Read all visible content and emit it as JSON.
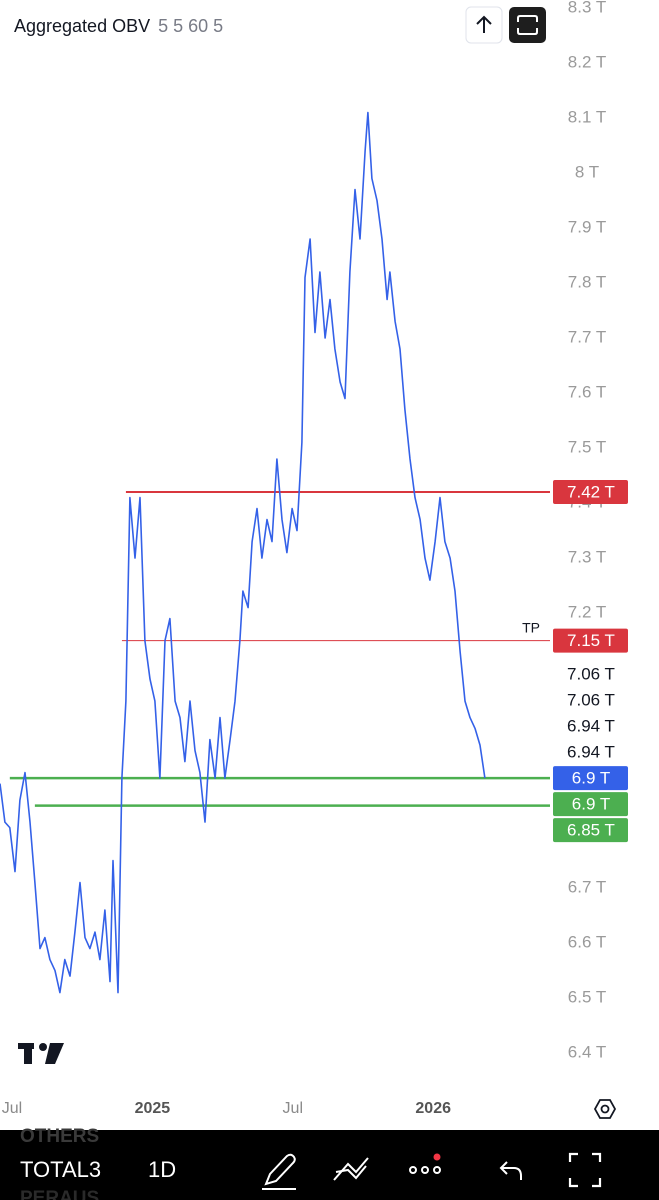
{
  "header": {
    "title": "Aggregated OBV",
    "params": "5 5 60 5"
  },
  "chart_data": {
    "type": "line",
    "color": "#3461e8",
    "x": [
      -0.51,
      -0.3,
      -0.09,
      0.13,
      0.34,
      0.56,
      0.77,
      0.98,
      1.2,
      1.41,
      1.62,
      1.84,
      2.05,
      2.26,
      2.48,
      2.69,
      2.91,
      3.12,
      3.33,
      3.55,
      3.76,
      3.97,
      4.19,
      4.32,
      4.53,
      4.7,
      4.87,
      5.04,
      5.26,
      5.47,
      5.68,
      5.9,
      6.11,
      6.32,
      6.54,
      6.75,
      6.97,
      7.18,
      7.39,
      7.61,
      7.82,
      8.03,
      8.25,
      8.46,
      8.68,
      8.89,
      9.1,
      9.32,
      9.53,
      9.74,
      9.87,
      10.09,
      10.26,
      10.47,
      10.68,
      10.9,
      11.11,
      11.32,
      11.54,
      11.75,
      11.97,
      12.18,
      12.39,
      12.52,
      12.74,
      12.95,
      13.16,
      13.38,
      13.59,
      13.8,
      14.02,
      14.23,
      14.44,
      14.66,
      14.87,
      15.09,
      15.21,
      15.38,
      15.6,
      15.81,
      16.03,
      16.15,
      16.37,
      16.58,
      16.79,
      17.01,
      17.22,
      17.44,
      17.65,
      17.86,
      18.08,
      18.29,
      18.5,
      18.72,
      18.93,
      19.15,
      19.36,
      19.57,
      19.79,
      20.0,
      20.21
    ],
    "values": [
      6.89,
      6.82,
      6.81,
      6.73,
      6.86,
      6.91,
      6.82,
      6.71,
      6.59,
      6.61,
      6.57,
      6.55,
      6.51,
      6.57,
      6.54,
      6.62,
      6.71,
      6.61,
      6.59,
      6.62,
      6.57,
      6.66,
      6.53,
      6.75,
      6.51,
      6.9,
      7.04,
      7.41,
      7.3,
      7.41,
      7.15,
      7.08,
      7.04,
      6.9,
      7.15,
      7.19,
      7.04,
      7.01,
      6.93,
      7.04,
      6.95,
      6.91,
      6.82,
      6.97,
      6.9,
      7.01,
      6.9,
      6.97,
      7.04,
      7.15,
      7.24,
      7.21,
      7.33,
      7.39,
      7.3,
      7.37,
      7.33,
      7.48,
      7.37,
      7.31,
      7.39,
      7.35,
      7.51,
      7.81,
      7.88,
      7.71,
      7.82,
      7.7,
      7.77,
      7.68,
      7.62,
      7.59,
      7.82,
      7.97,
      7.88,
      8.04,
      8.11,
      7.99,
      7.95,
      7.88,
      7.77,
      7.82,
      7.73,
      7.68,
      7.57,
      7.48,
      7.41,
      7.37,
      7.3,
      7.26,
      7.33,
      7.41,
      7.33,
      7.3,
      7.24,
      7.13,
      7.04,
      7.01,
      6.99,
      6.96,
      6.9
    ],
    "xlim": [
      -0.51,
      22.99
    ],
    "xticks": [
      {
        "value": 0,
        "label": "Jul"
      },
      {
        "value": 6,
        "label": "2025"
      },
      {
        "value": 12,
        "label": "Jul"
      },
      {
        "value": 18,
        "label": "2026"
      }
    ],
    "ylim": [
      6.333,
      8.3145
    ],
    "yticks": [
      {
        "value": 8.3,
        "label": "8.3 T"
      },
      {
        "value": 8.2,
        "label": "8.2 T"
      },
      {
        "value": 8.1,
        "label": "8.1 T"
      },
      {
        "value": 8,
        "label": "8 T"
      },
      {
        "value": 7.9,
        "label": "7.9 T"
      },
      {
        "value": 7.8,
        "label": "7.8 T"
      },
      {
        "value": 7.7,
        "label": "7.7 T"
      },
      {
        "value": 7.6,
        "label": "7.6 T"
      },
      {
        "value": 7.5,
        "label": "7.5 T"
      },
      {
        "value": 7.4,
        "label": "7.4 T"
      },
      {
        "value": 7.3,
        "label": "7.3 T"
      },
      {
        "value": 7.2,
        "label": "7.2 T"
      },
      {
        "value": 6.7,
        "label": "6.7 T"
      },
      {
        "value": 6.6,
        "label": "6.6 T"
      },
      {
        "value": 6.5,
        "label": "6.5 T"
      },
      {
        "value": 6.4,
        "label": "6.4 T"
      }
    ],
    "grid": false,
    "hlines": [
      {
        "value": 7.42,
        "from": 4.87,
        "color": "#d9363e",
        "width": 2
      },
      {
        "value": 7.15,
        "from": 4.7,
        "color": "#d9363e",
        "width": 1
      },
      {
        "value": 6.9,
        "from": -0.09,
        "color": "#4caf50",
        "width": 2.5
      },
      {
        "value": 6.85,
        "from": 0.98,
        "color": "#4caf50",
        "width": 2.5
      }
    ],
    "annotations": [
      {
        "text": "TP",
        "value": 7.15
      }
    ],
    "price_labels": [
      {
        "value": 7.42,
        "label": "7.42 T",
        "background": "#d9363e"
      },
      {
        "value": 7.15,
        "label": "7.15 T",
        "background": "#d9363e"
      },
      {
        "value": 7.06,
        "label": "7.06 T"
      },
      {
        "value": 7.06,
        "label": "7.06 T"
      },
      {
        "value": 6.94,
        "label": "6.94 T"
      },
      {
        "value": 6.94,
        "label": "6.94 T"
      },
      {
        "value": 6.9,
        "label": "6.9 T",
        "background": "#3461e8"
      },
      {
        "value": 6.9,
        "label": "6.9 T",
        "background": "#4caf50"
      },
      {
        "value": 6.85,
        "label": "6.85 T",
        "background": "#4caf50"
      }
    ]
  },
  "toolbar": {
    "symbol": "TOTAL3",
    "interval": "1D",
    "behind": [
      "OTHERS",
      "PERAUS"
    ]
  }
}
